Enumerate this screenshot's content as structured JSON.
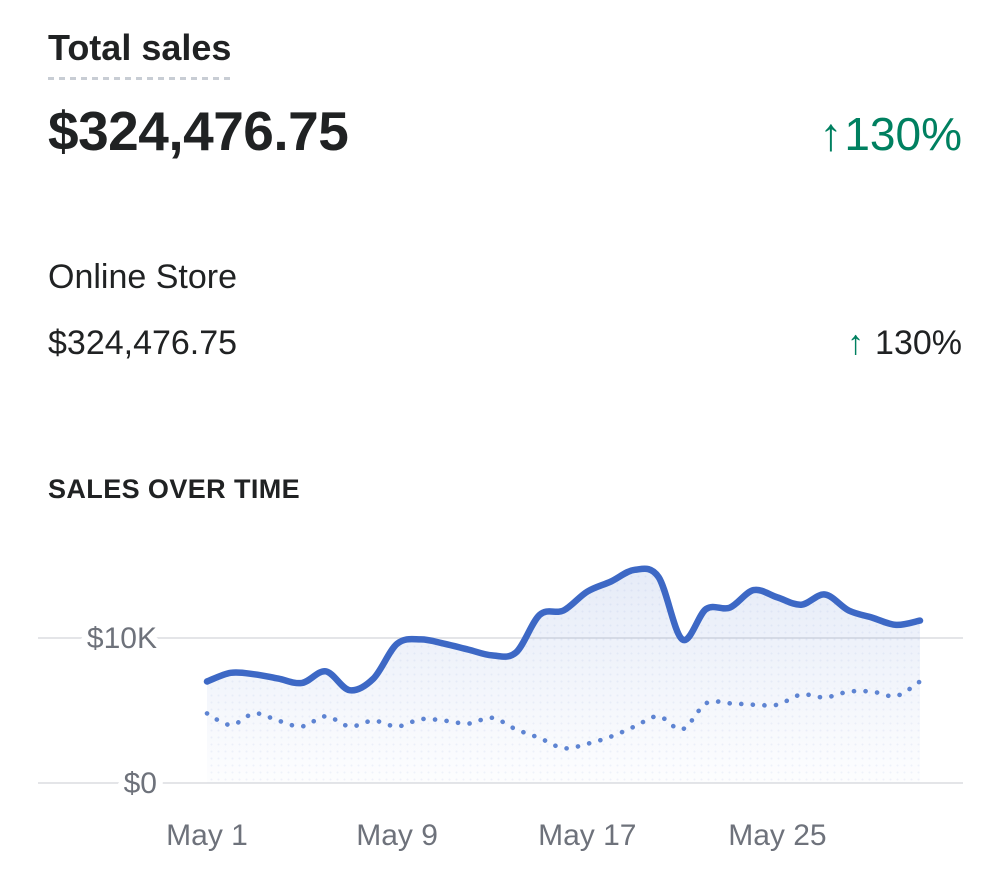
{
  "metric": {
    "title": "Total sales",
    "value": "$324,476.75",
    "delta": {
      "arrow": "↑",
      "text": "130%",
      "direction": "up"
    }
  },
  "breakdown": {
    "channel": "Online Store",
    "value": "$324,476.75",
    "delta": {
      "arrow": "↑",
      "text": "130%",
      "direction": "up"
    }
  },
  "chart_section": {
    "heading": "SALES OVER TIME"
  },
  "colors": {
    "text_primary": "#202223",
    "text_secondary": "#6e727b",
    "success_green": "#008060",
    "line_current": "#3d68c5",
    "line_previous": "#5e84d2",
    "gridline": "#e4e5e8"
  },
  "chart_data": {
    "type": "line",
    "title": "SALES OVER TIME",
    "x_unit": "day",
    "x_tick_labels": [
      "May 1",
      "May 9",
      "May 17",
      "May 25"
    ],
    "x_tick_indices": [
      0,
      8,
      16,
      24
    ],
    "y_ticks": [
      {
        "value": 0,
        "label": "$0"
      },
      {
        "value": 10000,
        "label": "$10K"
      }
    ],
    "ylim": [
      0,
      15500
    ],
    "grid": "horizontal-only",
    "legend": "none",
    "series": [
      {
        "name": "current-period",
        "style": "solid",
        "area_fill": true,
        "values_usd": [
          7000,
          7600,
          7500,
          7200,
          6900,
          7700,
          6400,
          7200,
          9600,
          9900,
          9600,
          9200,
          8800,
          9000,
          11600,
          11900,
          13200,
          13900,
          14700,
          14200,
          9900,
          12000,
          12100,
          13300,
          12800,
          12300,
          13000,
          11900,
          11400,
          10900,
          11200
        ]
      },
      {
        "name": "previous-period",
        "style": "dotted",
        "area_fill": false,
        "values_usd": [
          4800,
          4000,
          4800,
          4300,
          3900,
          4600,
          3900,
          4300,
          3900,
          4400,
          4300,
          4100,
          4500,
          3700,
          3100,
          2400,
          2700,
          3200,
          3900,
          4600,
          3700,
          5500,
          5500,
          5400,
          5400,
          6100,
          5900,
          6300,
          6300,
          6000,
          7000
        ]
      }
    ]
  }
}
